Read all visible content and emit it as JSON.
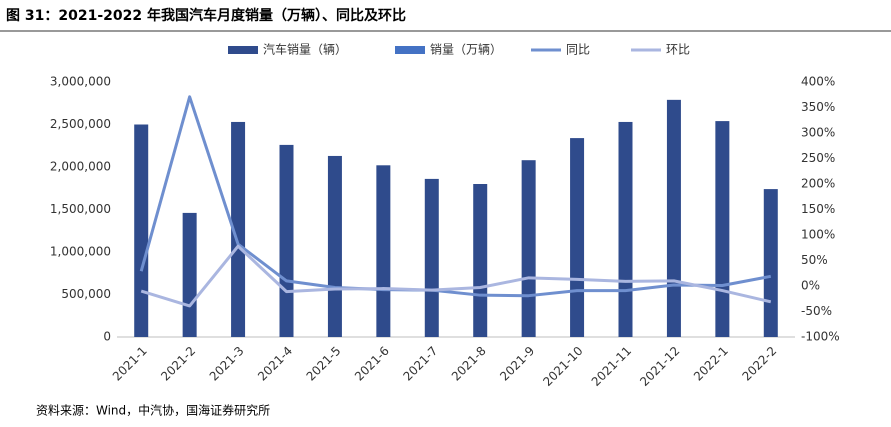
{
  "chart_data": {
    "type": "bar",
    "title": "图 31：2021-2022 年我国汽车月度销量（万辆）、同比及环比",
    "source": "资料来源：Wind，中汽协，国海证券研究所",
    "categories": [
      "2021-1",
      "2021-2",
      "2021-3",
      "2021-4",
      "2021-5",
      "2021-6",
      "2021-7",
      "2021-8",
      "2021-9",
      "2021-10",
      "2021-11",
      "2021-12",
      "2022-1",
      "2022-2"
    ],
    "series": [
      {
        "name": "汽车销量（辆）",
        "type": "bar",
        "color": "#2f4b8c",
        "values": [
          2500000,
          1460000,
          2530000,
          2260000,
          2130000,
          2020000,
          1860000,
          1800000,
          2080000,
          2340000,
          2530000,
          2790000,
          2540000,
          1740000
        ]
      },
      {
        "name": "销量（万辆）",
        "type": "bar",
        "color": "#4472c4",
        "values": [
          250,
          146,
          253,
          226,
          213,
          202,
          186,
          180,
          208,
          234,
          253,
          279,
          254,
          174
        ]
      },
      {
        "name": "同比",
        "type": "line",
        "axis": "y2",
        "color": "#6f8fcf",
        "values": [
          29,
          371,
          82,
          10,
          -3,
          -7,
          -8,
          -18,
          -19,
          -9,
          -9,
          2,
          1,
          19
        ]
      },
      {
        "name": "环比",
        "type": "line",
        "axis": "y2",
        "color": "#aab6e0",
        "values": [
          -10,
          -39,
          78,
          -11,
          -6,
          -5,
          -8,
          -3,
          16,
          13,
          9,
          10,
          -9,
          -31
        ]
      }
    ],
    "ylim": [
      0,
      3000000
    ],
    "yticks": [
      0,
      {
        "value": 500000,
        "label": "500,000"
      },
      {
        "value": 1000000,
        "label": "1,000,000"
      },
      {
        "value": 1500000,
        "label": "1,500,000"
      },
      {
        "value": 2000000,
        "label": "2,000,000"
      },
      {
        "value": 2500000,
        "label": "2,500,000"
      },
      {
        "value": 3000000,
        "label": "3,000,000"
      }
    ],
    "y2lim": [
      -100,
      400
    ],
    "y2ticks": [
      {
        "value": -100,
        "label": "-100%"
      },
      {
        "value": -50,
        "label": "-50%"
      },
      {
        "value": 0,
        "label": "0%"
      },
      {
        "value": 50,
        "label": "50%"
      },
      {
        "value": 100,
        "label": "100%"
      },
      {
        "value": 150,
        "label": "150%"
      },
      {
        "value": 200,
        "label": "200%"
      },
      {
        "value": 250,
        "label": "250%"
      },
      {
        "value": 300,
        "label": "300%"
      },
      {
        "value": 350,
        "label": "350%"
      },
      {
        "value": 400,
        "label": "400%"
      }
    ],
    "legend": "top"
  }
}
